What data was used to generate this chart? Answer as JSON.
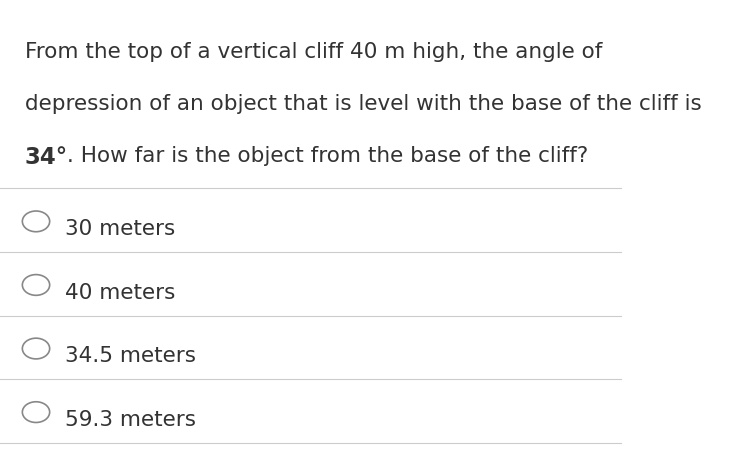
{
  "background_color": "#ffffff",
  "question_line1": "From the top of a vertical cliff 40 m high, the angle of",
  "question_line2": "depression of an object that is level with the base of the cliff is",
  "question_line3_prefix": ". How far is the object from the base of the cliff?",
  "question_bold": "34°",
  "options": [
    "30 meters",
    "40 meters",
    "34.5 meters",
    "59.3 meters"
  ],
  "divider_color": "#cccccc",
  "text_color": "#333333",
  "circle_color": "#888888",
  "font_size_question": 15.5,
  "font_size_options": 15.5,
  "fig_width": 7.44,
  "fig_height": 4.71
}
